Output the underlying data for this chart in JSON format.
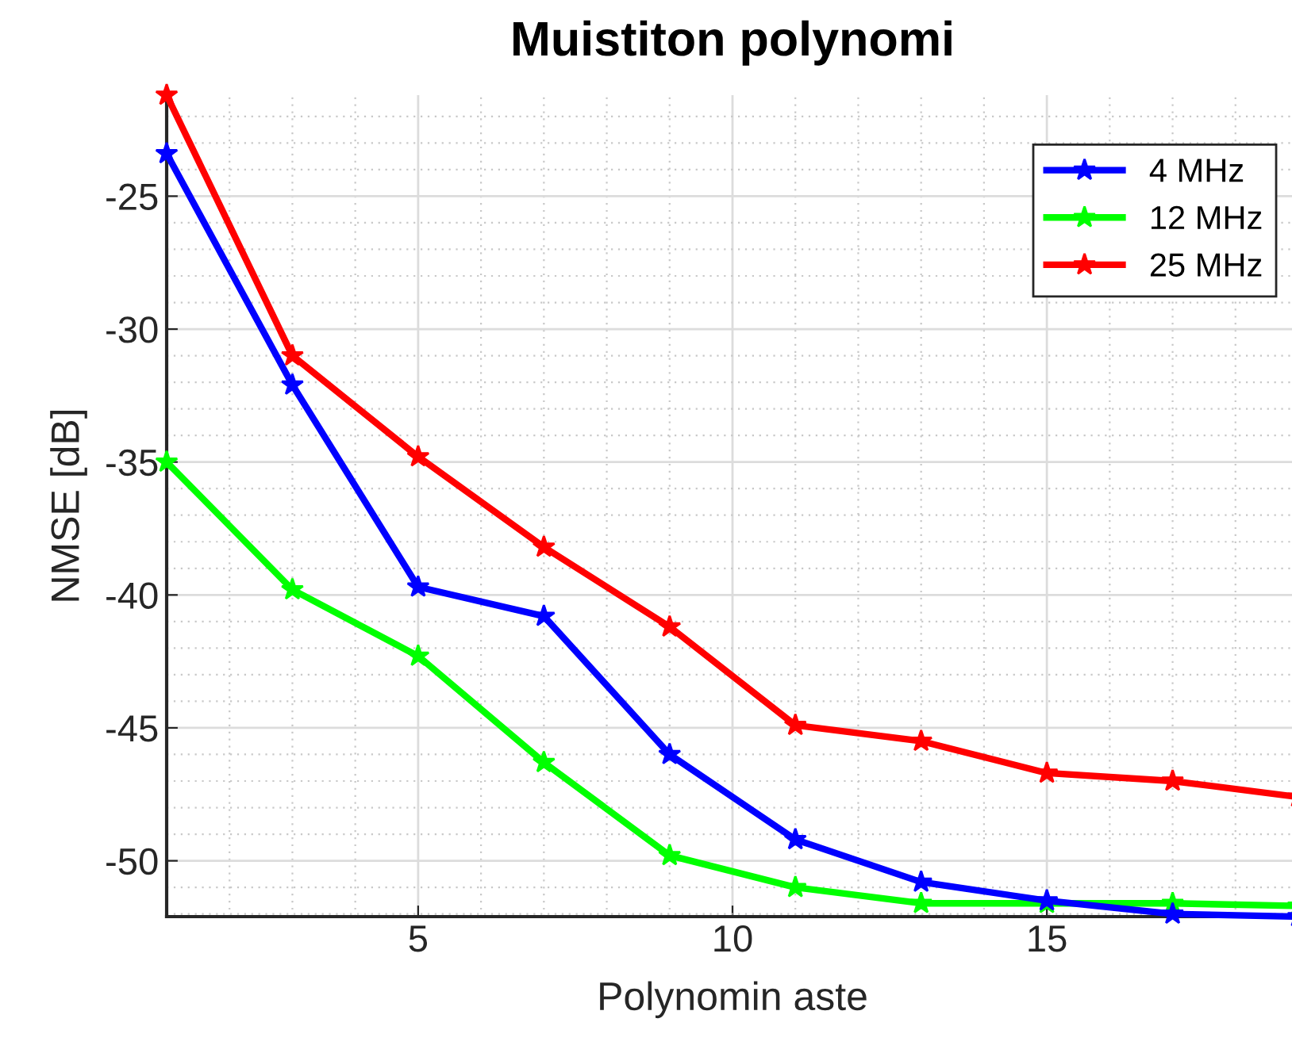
{
  "chart_data": {
    "type": "line",
    "title": "Muistiton polynomi",
    "xlabel": "Polynomin aste",
    "ylabel": "NMSE [dB]",
    "x": [
      1,
      3,
      5,
      7,
      9,
      11,
      13,
      15,
      17,
      19
    ],
    "series": [
      {
        "name": "4 MHz",
        "color": "#0000ff",
        "values": [
          -23.4,
          -32.1,
          -39.7,
          -40.8,
          -46.0,
          -49.2,
          -50.8,
          -51.5,
          -52.0,
          -52.1
        ]
      },
      {
        "name": "12 MHz",
        "color": "#00ff00",
        "values": [
          -35.0,
          -39.8,
          -42.3,
          -46.3,
          -49.8,
          -51.0,
          -51.6,
          -51.6,
          -51.6,
          -51.7
        ]
      },
      {
        "name": "25 MHz",
        "color": "#ff0000",
        "values": [
          -21.2,
          -31.0,
          -34.8,
          -38.2,
          -41.2,
          -44.9,
          -45.5,
          -46.7,
          -47.0,
          -47.6
        ]
      }
    ],
    "xlim": [
      1,
      19
    ],
    "ylim": [
      -52.1,
      -21.2
    ],
    "xticks": [
      5,
      10,
      15
    ],
    "yticks": [
      -50,
      -45,
      -40,
      -35,
      -30,
      -25
    ],
    "grid": true,
    "legend": "top right",
    "marker": "star",
    "line_style": "solid"
  }
}
